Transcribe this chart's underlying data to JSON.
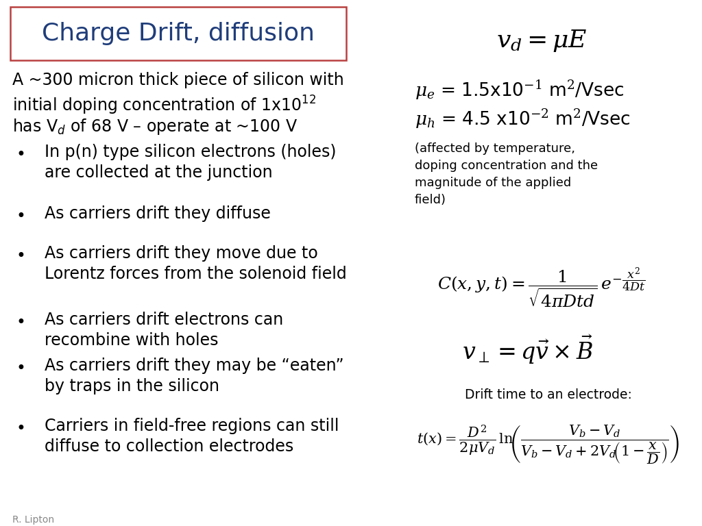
{
  "title": "Charge Drift, diffusion",
  "title_color": "#1F3D7A",
  "title_box_color": "#B94040",
  "bg_color": "#FFFFFF",
  "intro_line1": "A ~300 micron thick piece of silicon with",
  "intro_line2": "initial doping concentration of 1x10$^{12}$",
  "intro_line3": "has V$_d$ of 68 V – operate at ~100 V",
  "bullets": [
    [
      "In p(n) type silicon electrons (holes)",
      "are collected at the junction"
    ],
    [
      "As carriers drift they diffuse"
    ],
    [
      "As carriers drift they move due to",
      "Lorentz forces from the solenoid field"
    ],
    [
      "As carriers drift electrons can",
      "recombine with holes"
    ],
    [
      "As carriers drift they may be “eaten”",
      "by traps in the silicon"
    ],
    [
      "Carriers in field-free regions can still",
      "diffuse to collection electrodes"
    ]
  ],
  "eq1": "$v_d = \\mu E$",
  "mu_line1": "$\\mu_e$ = 1.5x10$^{-1}$ m$^2$/Vsec",
  "mu_line2": "$\\mu_h$ = 4.5 x10$^{-2}$ m$^2$/Vsec",
  "mu_note": "(affected by temperature,\ndoping concentration and the\nmagnitude of the applied\nfield)",
  "eq2": "$C(x, y, t) = \\dfrac{1}{\\sqrt{4\\pi Dtd}}\\, e^{-\\dfrac{x^2}{4Dt}}$",
  "eq3": "$v_{\\perp} = q\\vec{v} \\times \\vec{B}$",
  "drift_label": "Drift time to an electrode:",
  "eq4": "$t(x) = \\dfrac{D^2}{2\\mu V_d}\\,\\mathrm{ln}\\!\\left(\\dfrac{V_b - V_d}{V_b - V_d + 2V_d\\!\\left(1 - \\dfrac{x}{D}\\right)}\\right)$",
  "footer": "R. Lipton",
  "text_color": "#000000"
}
